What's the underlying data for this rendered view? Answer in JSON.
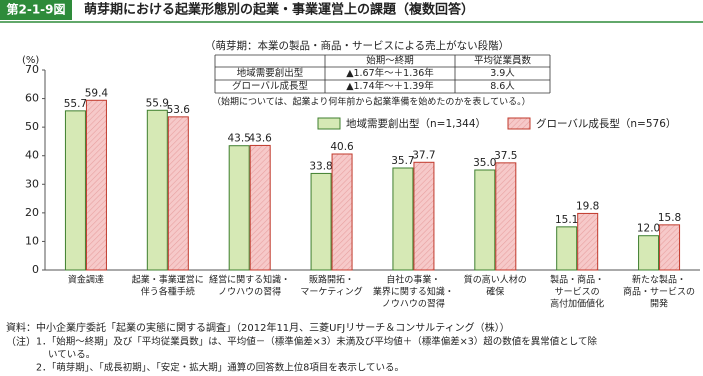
{
  "header": {
    "label": "第2-1-9図",
    "title": "萌芽期における起業形態別の起業・事業運営上の課題（複数回答）"
  },
  "chart_data": {
    "type": "bar",
    "y_label": "(%)",
    "categories": [
      [
        "資金調達"
      ],
      [
        "起業・事業運営に",
        "伴う各種手続"
      ],
      [
        "経営に関する知識・",
        "ノウハウの習得"
      ],
      [
        "販路開拓・",
        "マーケティング"
      ],
      [
        "自社の事業・",
        "業界に関する知識・",
        "ノウハウの習得"
      ],
      [
        "質の高い人材の",
        "確保"
      ],
      [
        "製品・商品・",
        "サービスの",
        "高付加価値化"
      ],
      [
        "新たな製品・",
        "商品・サービスの",
        "開発"
      ]
    ],
    "series": [
      {
        "name": "地域需要創出型（n=1,344）",
        "color": "#d6e9b5",
        "stroke": "#3f7f2f",
        "values": [
          55.7,
          55.9,
          43.5,
          33.8,
          35.7,
          35.0,
          15.1,
          12.0
        ],
        "value_labels": [
          "55.7",
          "55.9",
          "43.5",
          "33.8",
          "35.7",
          "35.0",
          "15.1",
          "12.0"
        ]
      },
      {
        "name": "グローバル成長型（n=576）",
        "color": "#f6c9c9",
        "stroke": "#c0392b",
        "values": [
          59.4,
          53.6,
          43.6,
          40.6,
          37.7,
          37.5,
          19.8,
          15.8
        ],
        "value_labels": [
          "59.4",
          "53.6",
          "43.6",
          "40.6",
          "37.7",
          "37.5",
          "19.8",
          "15.8"
        ]
      }
    ],
    "ylim": [
      0,
      70
    ],
    "yticks": [
      0,
      10,
      20,
      30,
      40,
      50,
      60,
      70
    ],
    "inset": {
      "subtitle": "（萌芽期：本業の製品・商品・サービスによる売上がない段階）",
      "columns": [
        "始期～終期",
        "平均従業員数"
      ],
      "rows": [
        [
          "地域需要創出型",
          "▲1.67年～＋1.36年",
          "3.9人"
        ],
        [
          "グローバル成長型",
          "▲1.74年～＋1.39年",
          "8.6人"
        ]
      ],
      "note": "（始期については、起業より何年前から起業準備を始めたのかを表している。）"
    }
  },
  "footer": {
    "source": "資料：中小企業庁委託「起業の実態に関する調査」（2012年11月、三菱UFJリサーチ＆コンサルティング（株））",
    "note_label": "（注）",
    "notes": [
      [
        "1．「始期～終期」及び「平均従業員数」は、平均値－（標準偏差×3）未満及び平均値＋（標準偏差×3）超の数値を異常値として除",
        "いている。"
      ],
      [
        "2．「萌芽期」、「成長初期」、「安定・拡大期」通算の回答数上位8項目を表示している。"
      ]
    ]
  }
}
